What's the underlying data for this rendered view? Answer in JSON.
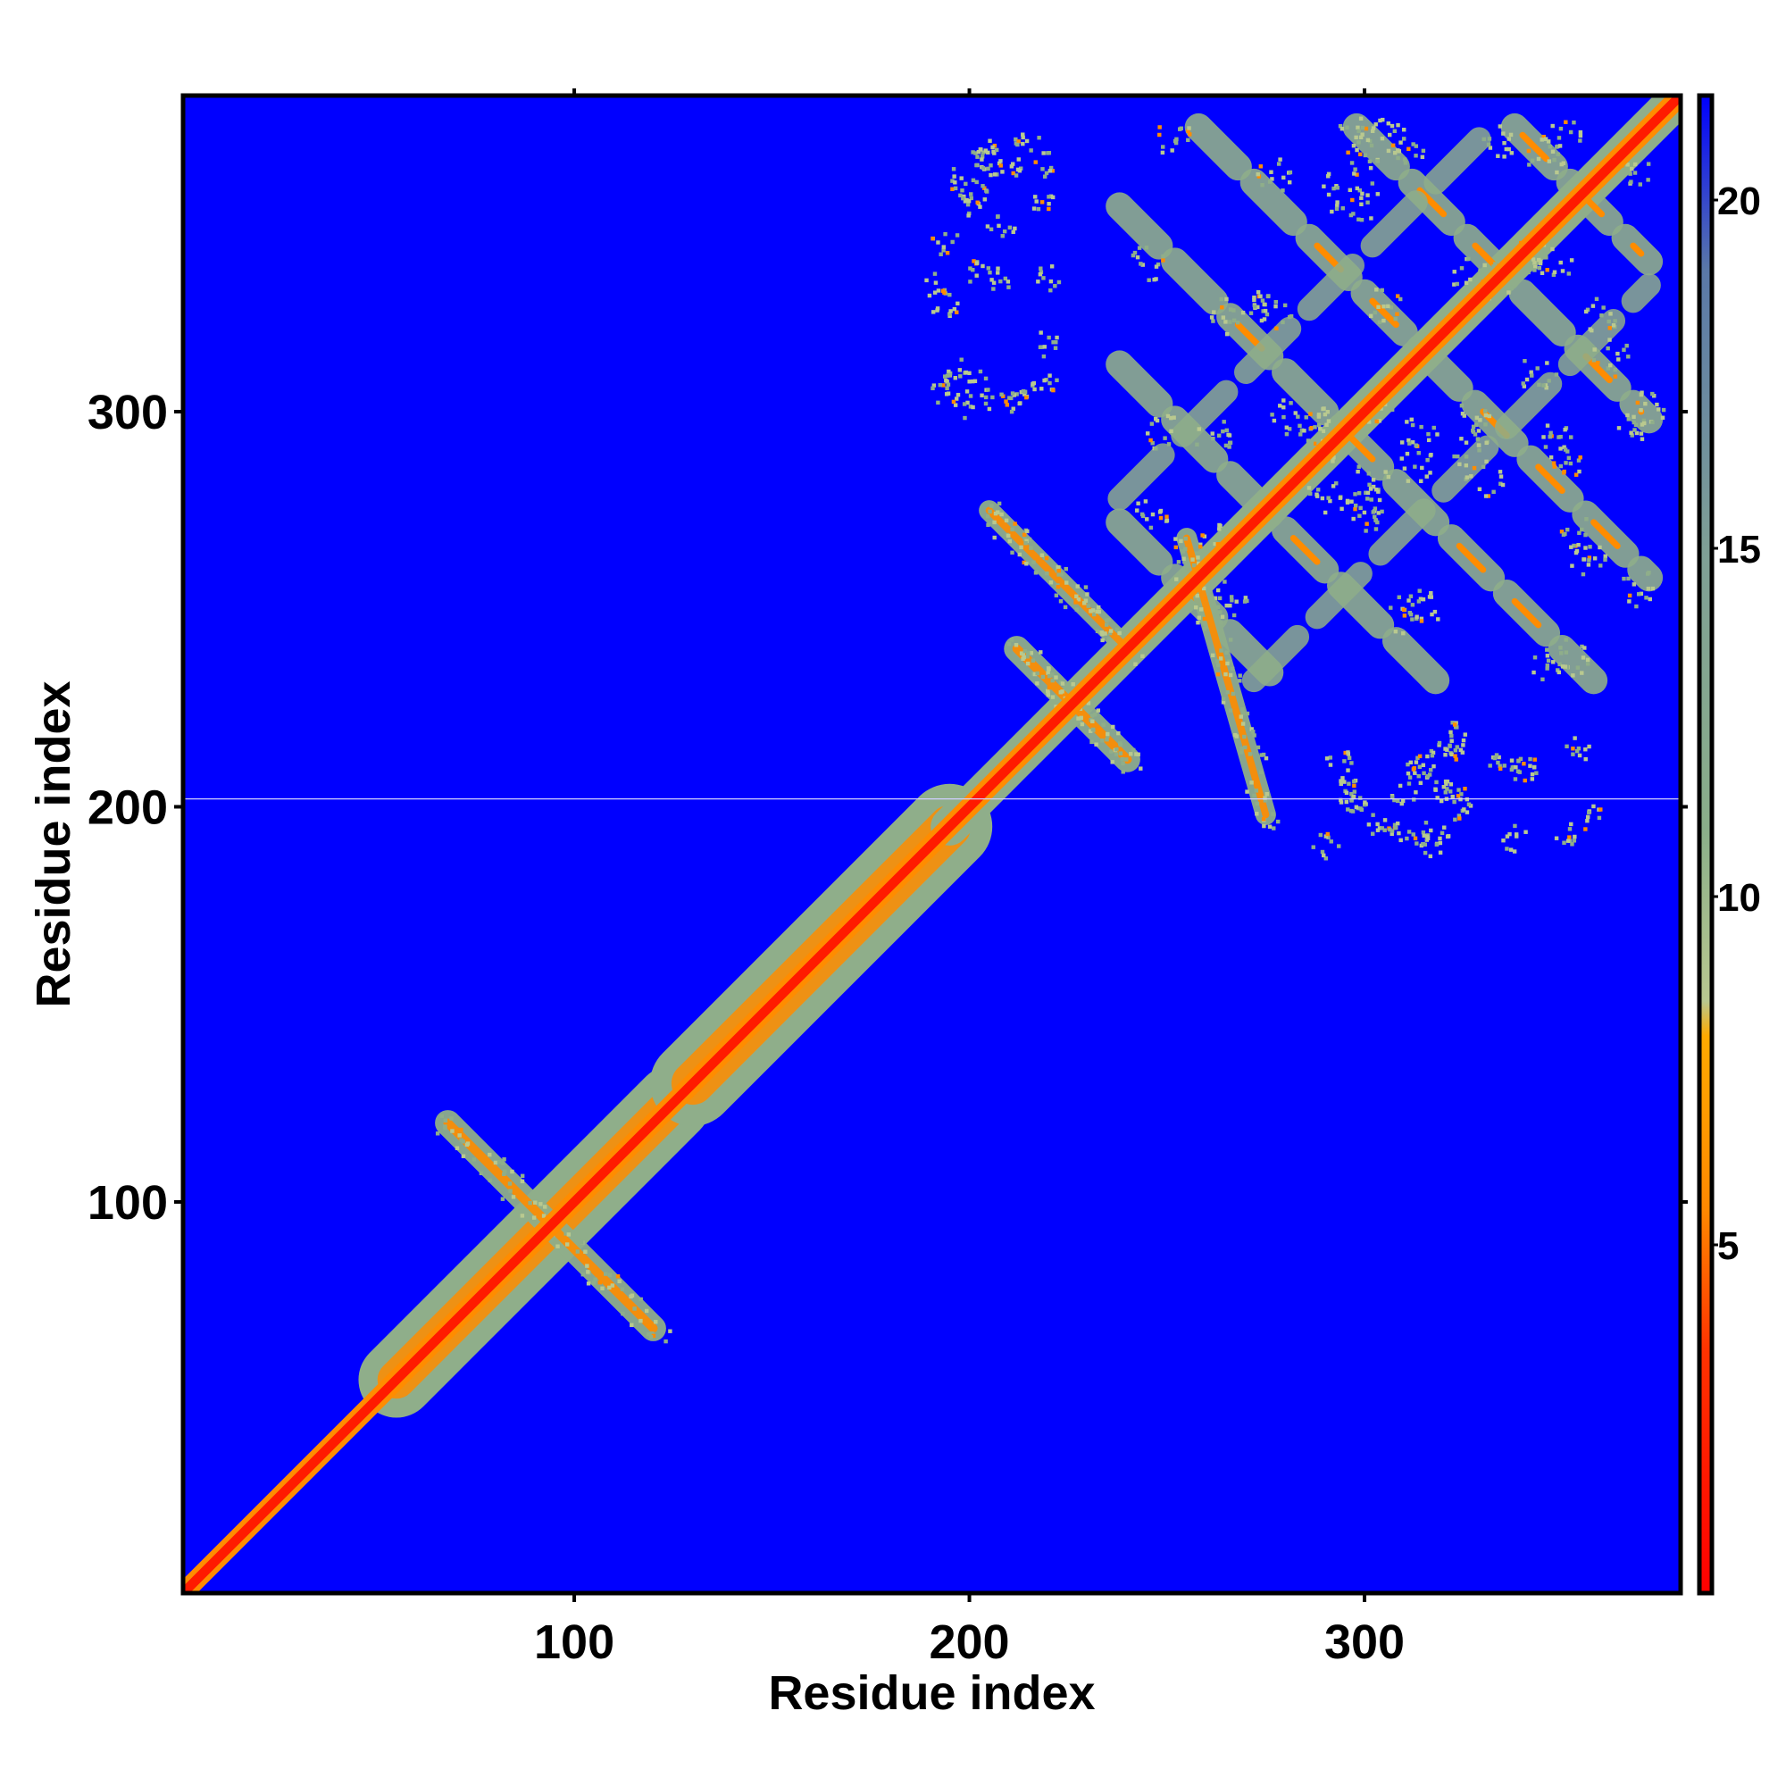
{
  "chart_data": {
    "type": "heatmap",
    "title": "",
    "xlabel": "Residue index",
    "ylabel": "Residue index",
    "xlim": [
      1,
      380
    ],
    "ylim": [
      1,
      380
    ],
    "x_ticks": [
      100,
      200,
      300
    ],
    "x_tick_labels": [
      "100",
      "200",
      "300"
    ],
    "y_ticks": [
      100,
      200,
      300
    ],
    "y_tick_labels": [
      "100",
      "200",
      "300"
    ],
    "grid": false,
    "colorbar": {
      "position": "right",
      "range": [
        0,
        21.5
      ],
      "ticks": [
        5,
        10,
        15,
        20
      ],
      "tick_labels": [
        "5",
        "10",
        "15",
        "20"
      ],
      "colors": [
        {
          "value": 0,
          "color": "#ff0000"
        },
        {
          "value": 3.5,
          "color": "#ff3300"
        },
        {
          "value": 5.5,
          "color": "#ff8800"
        },
        {
          "value": 8,
          "color": "#ffaa00"
        },
        {
          "value": 8.5,
          "color": "#b8c890"
        },
        {
          "value": 11,
          "color": "#8aae8a"
        },
        {
          "value": 15,
          "color": "#7f9f96"
        },
        {
          "value": 19,
          "color": "#5a78a8"
        },
        {
          "value": 21.5,
          "color": "#0000ff"
        }
      ]
    },
    "background_color": "#0000ff",
    "features": [
      {
        "kind": "diagonal",
        "from": 1,
        "to": 380,
        "width": 1.5
      },
      {
        "kind": "diagonal_band",
        "from": 55,
        "to": 125,
        "width": 8
      },
      {
        "kind": "diagonal_band",
        "from": 130,
        "to": 195,
        "width": 9
      },
      {
        "kind": "diagonal_band",
        "from": 195,
        "to": 380,
        "width": 4
      },
      {
        "kind": "antiparallel_segment",
        "from": [
          68,
          120
        ],
        "to": [
          120,
          68
        ],
        "width": 2.5
      },
      {
        "kind": "antiparallel_segment",
        "from": [
          212,
          240
        ],
        "to": [
          240,
          212
        ],
        "width": 2.5
      },
      {
        "kind": "antiparallel_segment",
        "from": [
          205,
          275
        ],
        "to": [
          240,
          240
        ],
        "width": 2
      },
      {
        "kind": "antiparallel_segment",
        "from": [
          255,
          268
        ],
        "to": [
          275,
          198
        ],
        "width": 2
      },
      {
        "kind": "lattice_block",
        "x_range": [
          238,
          372
        ],
        "y_range": [
          232,
          372
        ],
        "spacing": 40
      },
      {
        "kind": "sparse_block",
        "x_range": [
          190,
          220
        ],
        "y_range": [
          300,
          370
        ]
      },
      {
        "kind": "sparse_block",
        "x_range": [
          280,
          362
        ],
        "y_range": [
          190,
          220
        ]
      }
    ]
  }
}
